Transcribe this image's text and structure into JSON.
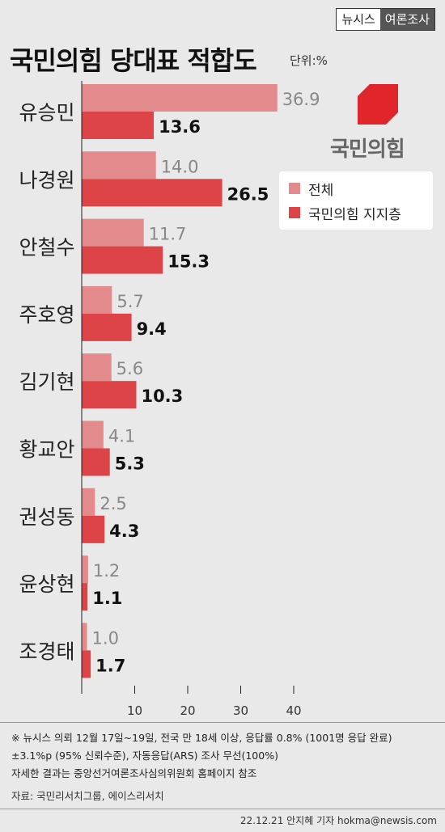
{
  "header": {
    "brand": "뉴시스",
    "section": "여론조사"
  },
  "title": "국민의힘 당대표 적합도",
  "unit": "단위:%",
  "logo": {
    "text": "국민의힘",
    "color": "#e0252b"
  },
  "legend": [
    {
      "label": "전체",
      "color": "#e38a8c"
    },
    {
      "label": "국민의힘 지지층",
      "color": "#dc4448"
    }
  ],
  "chart_data": {
    "type": "bar",
    "orientation": "horizontal",
    "categories": [
      "유승민",
      "나경원",
      "안철수",
      "주호영",
      "김기현",
      "황교안",
      "권성동",
      "윤상현",
      "조경태"
    ],
    "series": [
      {
        "name": "전체",
        "color": "#e38a8c",
        "values": [
          36.9,
          14.0,
          11.7,
          5.7,
          5.6,
          4.1,
          2.5,
          1.2,
          1.0
        ]
      },
      {
        "name": "국민의힘 지지층",
        "color": "#dc4448",
        "values": [
          13.6,
          26.5,
          15.3,
          9.4,
          10.3,
          5.3,
          4.3,
          1.1,
          1.7
        ]
      }
    ],
    "xticks": [
      10,
      20,
      30,
      40
    ],
    "xlim": [
      0,
      40
    ],
    "grid": false,
    "legend_position": "top-right"
  },
  "footnote": {
    "lines": [
      "※ 뉴시스 의뢰 12월 17일~19일, 전국 만 18세 이상, 응답률 0.8% (1001명 응답 완료)",
      "±3.1%p (95% 신뢰수준), 자동응답(ARS) 조사 무선(100%)",
      "자세한 결과는 중앙선거여론조사심의위원회 홈페이지 참조"
    ],
    "source": "자료: 국민리서치그룹, 에이스리서치"
  },
  "credit": "22.12.21 안지혜 기자 hokma@newsis.com"
}
